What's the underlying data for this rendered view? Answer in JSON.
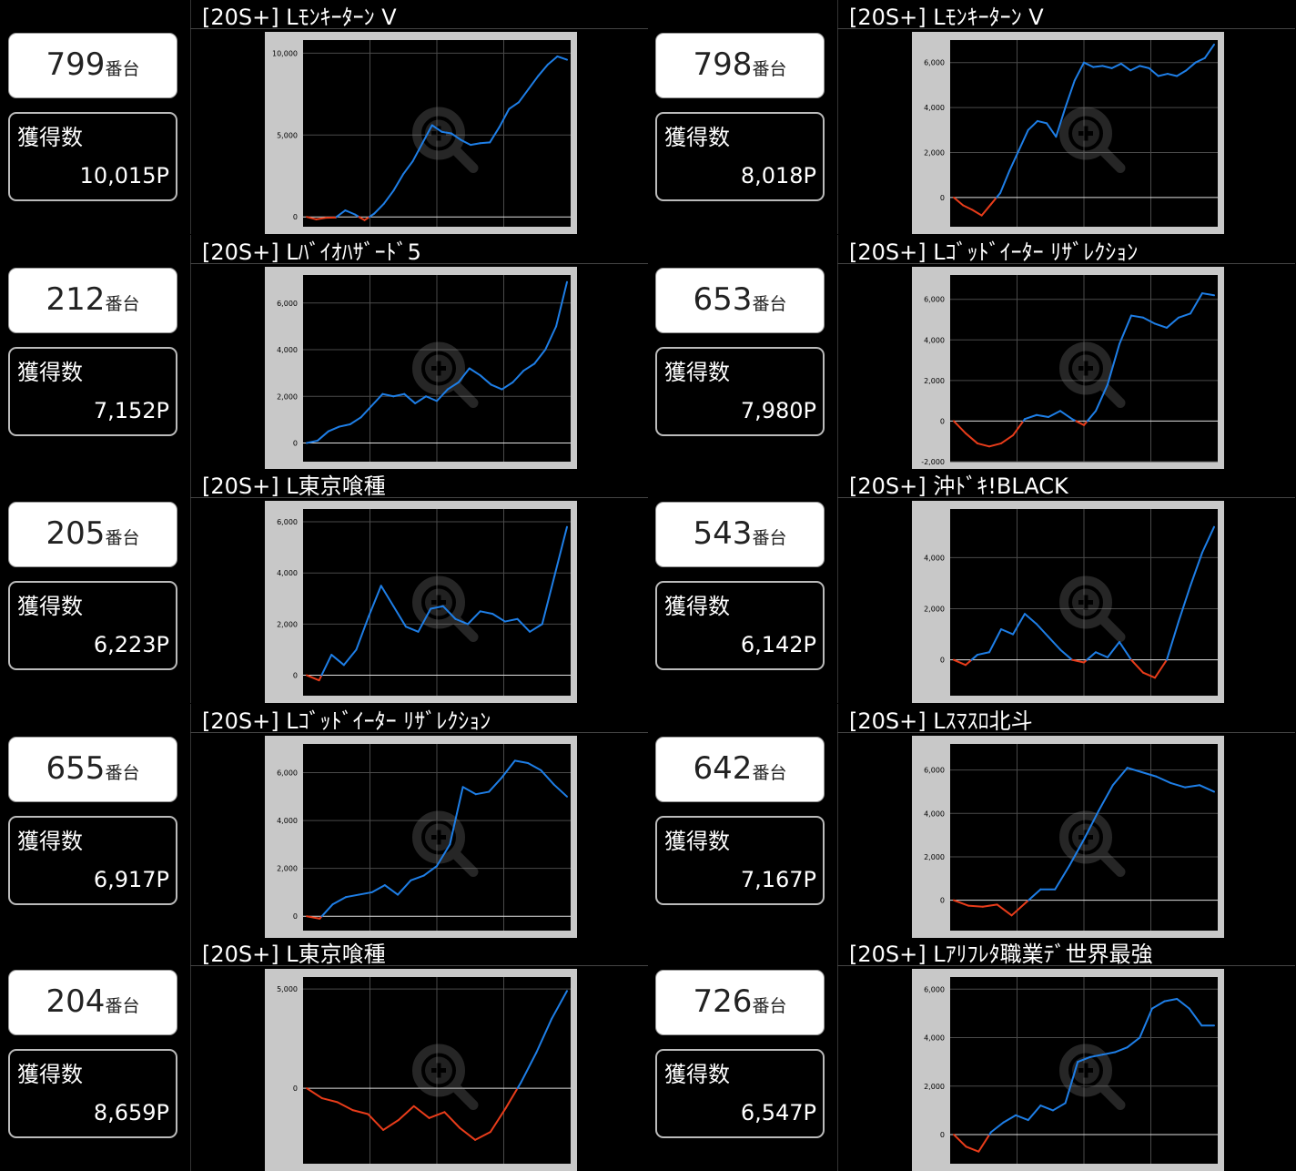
{
  "machines": [
    {
      "number": "799",
      "suffix": "番台",
      "label": "獲得数",
      "points": "10,015P",
      "title": "[20S+] Lﾓﾝｷｰﾀｰﾝ V",
      "chart_data": {
        "type": "line",
        "yticks": [
          0,
          5000,
          10000
        ],
        "ytick_labels": [
          "0",
          "5,000",
          "10,000"
        ],
        "ylim": [
          -600,
          10800
        ],
        "values": [
          0,
          -150,
          -50,
          -40,
          400,
          150,
          -200,
          200,
          800,
          1600,
          2600,
          3400,
          4500,
          5600,
          5200,
          5100,
          4700,
          4400,
          4500,
          4550,
          5500,
          6600,
          7000,
          7800,
          8600,
          9300,
          9800,
          9600
        ]
      }
    },
    {
      "number": "798",
      "suffix": "番台",
      "label": "獲得数",
      "points": "8,018P",
      "title": "[20S+] Lﾓﾝｷｰﾀｰﾝ V",
      "chart_data": {
        "type": "line",
        "yticks": [
          0,
          2000,
          4000,
          6000
        ],
        "ytick_labels": [
          "0",
          "2,000",
          "4,000",
          "6,000"
        ],
        "ylim": [
          -1300,
          7000
        ],
        "values": [
          0,
          -350,
          -550,
          -800,
          -300,
          200,
          1200,
          2100,
          3000,
          3400,
          3300,
          2700,
          4000,
          5200,
          6000,
          5800,
          5850,
          5750,
          5950,
          5650,
          5850,
          5750,
          5400,
          5500,
          5400,
          5650,
          6000,
          6200,
          6800
        ]
      }
    },
    {
      "number": "212",
      "suffix": "番台",
      "label": "獲得数",
      "points": "7,152P",
      "title": "[20S+] Lﾊﾞｲｵﾊｻﾞｰﾄﾞ5",
      "chart_data": {
        "type": "line",
        "yticks": [
          0,
          2000,
          4000,
          6000
        ],
        "ytick_labels": [
          "0",
          "2,000",
          "4,000",
          "6,000"
        ],
        "ylim": [
          -800,
          7200
        ],
        "values": [
          0,
          100,
          500,
          700,
          800,
          1100,
          1600,
          2100,
          2000,
          2100,
          1700,
          2000,
          1800,
          2300,
          2600,
          3200,
          2900,
          2500,
          2300,
          2600,
          3100,
          3400,
          4000,
          5000,
          6900
        ]
      }
    },
    {
      "number": "653",
      "suffix": "番台",
      "label": "獲得数",
      "points": "7,980P",
      "title": "[20S+] Lｺﾞｯﾄﾞｲｰﾀｰ ﾘｻﾞﾚｸｼｮﾝ",
      "chart_data": {
        "type": "line",
        "yticks": [
          -2000,
          0,
          2000,
          4000,
          6000
        ],
        "ytick_labels": [
          "-2,000",
          "0",
          "2,000",
          "4,000",
          "6,000"
        ],
        "ylim": [
          -2000,
          7200
        ],
        "values": [
          0,
          -600,
          -1100,
          -1250,
          -1100,
          -700,
          100,
          300,
          200,
          500,
          100,
          -200,
          500,
          1800,
          3800,
          5200,
          5100,
          4800,
          4600,
          5100,
          5300,
          6300,
          6200
        ]
      }
    },
    {
      "number": "205",
      "suffix": "番台",
      "label": "獲得数",
      "points": "6,223P",
      "title": "[20S+] L東京喰種",
      "chart_data": {
        "type": "line",
        "yticks": [
          0,
          2000,
          4000,
          6000
        ],
        "ytick_labels": [
          "0",
          "2,000",
          "4,000",
          "6,000"
        ],
        "ylim": [
          -800,
          6500
        ],
        "values": [
          0,
          -200,
          800,
          400,
          1000,
          2300,
          3500,
          2700,
          1900,
          1700,
          2600,
          2700,
          2200,
          2000,
          2500,
          2400,
          2100,
          2200,
          1700,
          2000,
          3900,
          5800
        ]
      }
    },
    {
      "number": "543",
      "suffix": "番台",
      "label": "獲得数",
      "points": "6,142P",
      "title": "[20S+] 沖ﾄﾞｷ!BLACK",
      "chart_data": {
        "type": "line",
        "yticks": [
          0,
          2000,
          4000
        ],
        "ytick_labels": [
          "0",
          "2,000",
          "4,000"
        ],
        "ylim": [
          -1400,
          5900
        ],
        "values": [
          0,
          -200,
          200,
          300,
          1200,
          1000,
          1800,
          1400,
          900,
          400,
          0,
          -100,
          300,
          100,
          700,
          0,
          -500,
          -700,
          0,
          1500,
          2900,
          4200,
          5200
        ]
      }
    },
    {
      "number": "655",
      "suffix": "番台",
      "label": "獲得数",
      "points": "6,917P",
      "title": "[20S+] Lｺﾞｯﾄﾞｲｰﾀｰ ﾘｻﾞﾚｸｼｮﾝ",
      "chart_data": {
        "type": "line",
        "yticks": [
          0,
          2000,
          4000,
          6000
        ],
        "ytick_labels": [
          "0",
          "2,000",
          "4,000",
          "6,000"
        ],
        "ylim": [
          -600,
          7200
        ],
        "values": [
          0,
          -100,
          500,
          800,
          900,
          1000,
          1300,
          900,
          1500,
          1700,
          2100,
          3000,
          5400,
          5100,
          5200,
          5800,
          6500,
          6400,
          6100,
          5500,
          5000
        ]
      }
    },
    {
      "number": "642",
      "suffix": "番台",
      "label": "獲得数",
      "points": "7,167P",
      "title": "[20S+] Lｽﾏｽﾛ北斗",
      "chart_data": {
        "type": "line",
        "yticks": [
          0,
          2000,
          4000,
          6000
        ],
        "ytick_labels": [
          "0",
          "2,000",
          "4,000",
          "6,000"
        ],
        "ylim": [
          -1400,
          7200
        ],
        "values": [
          0,
          -250,
          -300,
          -200,
          -700,
          -100,
          500,
          500,
          1600,
          2800,
          4100,
          5300,
          6100,
          5900,
          5700,
          5400,
          5200,
          5300,
          5000
        ]
      }
    },
    {
      "number": "204",
      "suffix": "番台",
      "label": "獲得数",
      "points": "8,659P",
      "title": "[20S+] L東京喰種",
      "chart_data": {
        "type": "line",
        "yticks": [
          0,
          5000
        ],
        "ytick_labels": [
          "0",
          "5,000"
        ],
        "ylim": [
          -3800,
          5600
        ],
        "values": [
          0,
          -500,
          -700,
          -1100,
          -1300,
          -2100,
          -1600,
          -900,
          -1500,
          -1200,
          -2000,
          -2600,
          -2200,
          -1000,
          300,
          1800,
          3500,
          4900
        ]
      }
    },
    {
      "number": "726",
      "suffix": "番台",
      "label": "獲得数",
      "points": "6,547P",
      "title": "[20S+] Lｱﾘﾌﾚﾀ職業ﾃﾞ世界最強",
      "chart_data": {
        "type": "line",
        "yticks": [
          0,
          2000,
          4000,
          6000
        ],
        "ytick_labels": [
          "0",
          "2,000",
          "4,000",
          "6,000"
        ],
        "ylim": [
          -1200,
          6500
        ],
        "values": [
          0,
          -500,
          -700,
          100,
          500,
          800,
          600,
          1200,
          1000,
          1300,
          3000,
          3200,
          3300,
          3400,
          3600,
          4000,
          5200,
          5500,
          5600,
          5200,
          4500,
          4500
        ]
      }
    }
  ],
  "colors": {
    "positive": "#1e7ee6",
    "negative": "#e83c1a",
    "zero_line": "#e0e0e0",
    "grid": "#4a4a4a",
    "frame": "#c8c8c8",
    "plot_bg": "#000000"
  },
  "watermark_icon": "zoom-in-icon"
}
